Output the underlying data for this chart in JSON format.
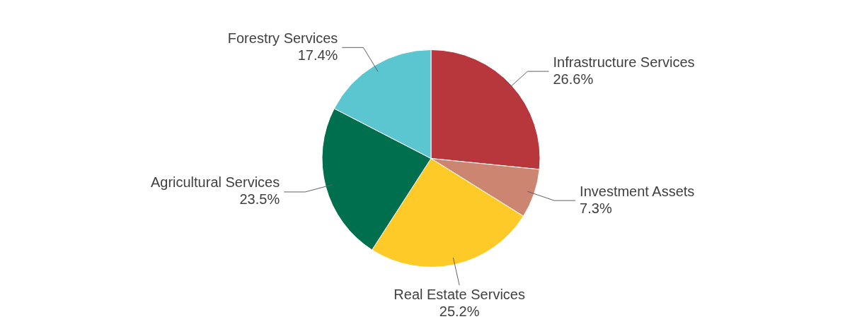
{
  "chart_data": {
    "type": "pie",
    "categories": [
      "Infrastructure Services",
      "Investment Assets",
      "Real Estate Services",
      "Agricultural Services",
      "Forestry Services"
    ],
    "values": [
      26.6,
      7.3,
      25.2,
      23.5,
      17.4
    ],
    "value_labels": [
      "26.6%",
      "7.3%",
      "25.2%",
      "23.5%",
      "17.4%"
    ],
    "colors": [
      "#b8373c",
      "#cc8570",
      "#fdca28",
      "#006f4e",
      "#5bc5d0"
    ],
    "legend": false
  }
}
